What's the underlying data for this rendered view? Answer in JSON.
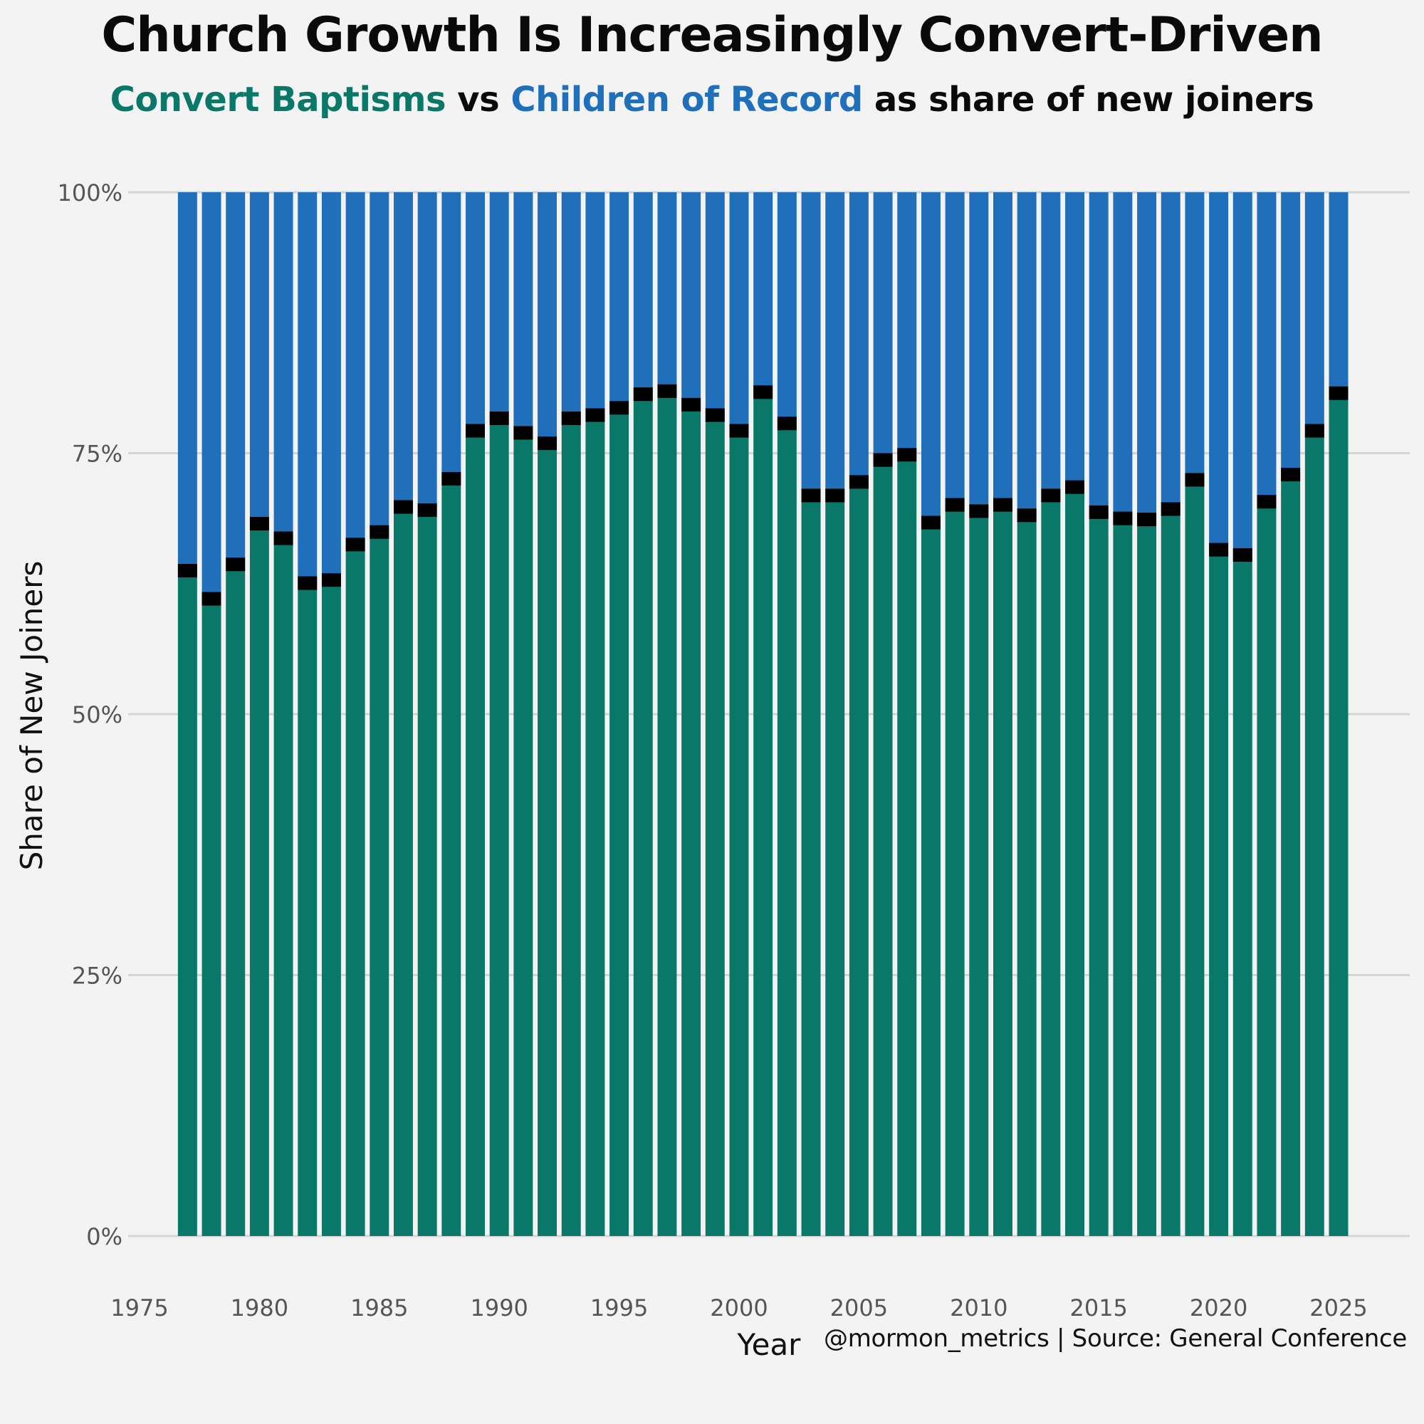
{
  "header": {
    "title": "Church Growth Is Increasingly Convert-Driven",
    "subtitle_part1": "Convert Baptisms",
    "subtitle_part2": " vs ",
    "subtitle_part3": "Children of Record",
    "subtitle_part4": " as share of new joiners"
  },
  "caption": "@mormon_metrics | Source: General Conference",
  "chart_data": {
    "type": "bar",
    "stacked": true,
    "xlabel": "Year",
    "ylabel": "Share of New Joiners",
    "ylim": [
      0,
      100
    ],
    "xlim": [
      1975,
      2025
    ],
    "xticks": [
      "1975",
      "1980",
      "1985",
      "1990",
      "1995",
      "2000",
      "2005",
      "2010",
      "2015",
      "2020",
      "2025"
    ],
    "yticks": [
      "0%",
      "25%",
      "50%",
      "75%",
      "100%"
    ],
    "grid": true,
    "colors": {
      "convert": "#0a7868",
      "children": "#1f6fbb",
      "divider": "#000000",
      "background": "#f3f3f3",
      "grid": "#d4d4d4"
    },
    "series": [
      {
        "name": "Convert Baptisms",
        "color": "#0a7868"
      },
      {
        "name": "Children of Record",
        "color": "#1f6fbb"
      }
    ],
    "years": [
      1977,
      1978,
      1979,
      1980,
      1981,
      1982,
      1983,
      1984,
      1985,
      1986,
      1987,
      1988,
      1989,
      1990,
      1991,
      1992,
      1993,
      1994,
      1995,
      1996,
      1997,
      1998,
      1999,
      2000,
      2001,
      2002,
      2003,
      2004,
      2005,
      2006,
      2007,
      2008,
      2009,
      2010,
      2011,
      2012,
      2013,
      2014,
      2015,
      2016,
      2017,
      2018,
      2019,
      2020,
      2021,
      2022,
      2023,
      2024,
      2025
    ],
    "convert_share": [
      64.4,
      61.7,
      65.0,
      68.9,
      67.5,
      63.2,
      63.5,
      66.9,
      68.1,
      70.5,
      70.2,
      73.2,
      77.8,
      79.0,
      77.6,
      76.6,
      79.0,
      79.3,
      80.0,
      81.3,
      81.6,
      80.3,
      79.3,
      77.8,
      81.5,
      78.5,
      71.6,
      71.6,
      72.9,
      75.0,
      75.5,
      69.0,
      70.7,
      70.1,
      70.7,
      69.7,
      71.6,
      72.4,
      70.0,
      69.4,
      69.3,
      70.3,
      73.1,
      66.4,
      65.9,
      71.0,
      73.6,
      77.8,
      81.4
    ]
  }
}
